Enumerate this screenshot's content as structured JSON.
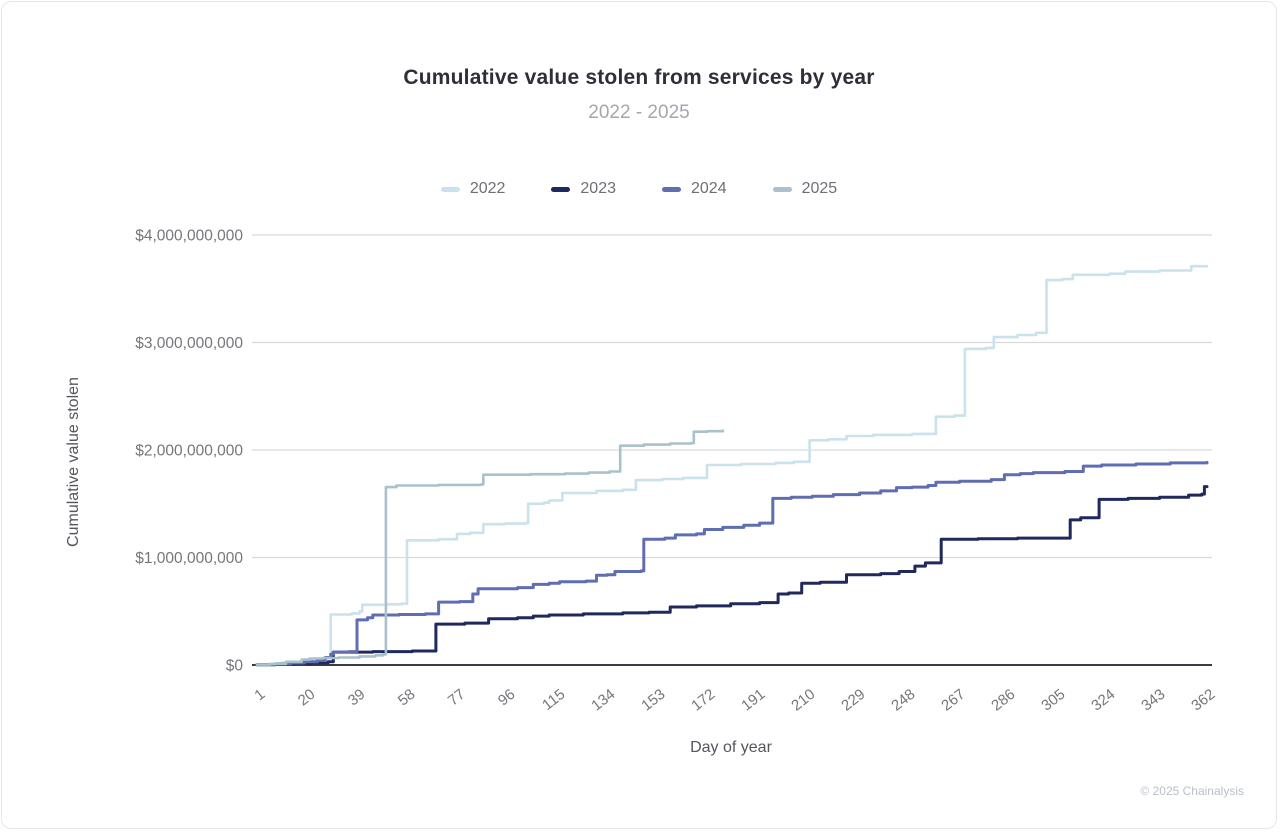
{
  "header": {
    "title": "Cumulative value stolen from services by year",
    "subtitle": "2022 - 2025"
  },
  "legend": {
    "items": [
      {
        "label": "2022",
        "color": "#c9e2ec"
      },
      {
        "label": "2023",
        "color": "#20295c"
      },
      {
        "label": "2024",
        "color": "#5f6db1"
      },
      {
        "label": "2025",
        "color": "#a8c1cb"
      }
    ]
  },
  "footer": {
    "copyright": "© 2025 Chainalysis"
  },
  "chart_data": {
    "type": "line",
    "title": "Cumulative value stolen from services by year",
    "subtitle": "2022 - 2025",
    "xlabel": "Day of year",
    "ylabel": "Cumulative value stolen",
    "units": "USD billions",
    "xlim": [
      1,
      362
    ],
    "ylim": [
      0,
      4000000000
    ],
    "grid": "horizontal",
    "step": true,
    "x_ticks": [
      1,
      20,
      39,
      58,
      77,
      96,
      115,
      134,
      153,
      172,
      191,
      210,
      229,
      248,
      267,
      286,
      305,
      324,
      343,
      362
    ],
    "y_ticks": [
      {
        "value": 0,
        "label": "$0"
      },
      {
        "value": 1,
        "label": "$1,000,000,000"
      },
      {
        "value": 2,
        "label": "$2,000,000,000"
      },
      {
        "value": 3,
        "label": "$3,000,000,000"
      },
      {
        "value": 4,
        "label": "$4,000,000,000"
      }
    ],
    "series": [
      {
        "name": "2022",
        "color": "#c9e2ec",
        "points": [
          [
            1,
            0.005
          ],
          [
            6,
            0.01
          ],
          [
            10,
            0.02
          ],
          [
            14,
            0.03
          ],
          [
            18,
            0.045
          ],
          [
            21,
            0.055
          ],
          [
            25,
            0.06
          ],
          [
            28,
            0.07
          ],
          [
            29,
            0.47
          ],
          [
            37,
            0.48
          ],
          [
            40,
            0.5
          ],
          [
            41,
            0.56
          ],
          [
            50,
            0.565
          ],
          [
            56,
            0.57
          ],
          [
            58,
            1.16
          ],
          [
            70,
            1.17
          ],
          [
            77,
            1.22
          ],
          [
            82,
            1.23
          ],
          [
            87,
            1.31
          ],
          [
            95,
            1.315
          ],
          [
            103,
            1.32
          ],
          [
            104,
            1.5
          ],
          [
            110,
            1.51
          ],
          [
            112,
            1.53
          ],
          [
            117,
            1.6
          ],
          [
            130,
            1.62
          ],
          [
            140,
            1.63
          ],
          [
            145,
            1.72
          ],
          [
            155,
            1.73
          ],
          [
            163,
            1.74
          ],
          [
            172,
            1.86
          ],
          [
            185,
            1.87
          ],
          [
            198,
            1.88
          ],
          [
            205,
            1.89
          ],
          [
            211,
            2.09
          ],
          [
            218,
            2.1
          ],
          [
            225,
            2.13
          ],
          [
            235,
            2.14
          ],
          [
            250,
            2.15
          ],
          [
            259,
            2.31
          ],
          [
            266,
            2.32
          ],
          [
            270,
            2.94
          ],
          [
            278,
            2.95
          ],
          [
            281,
            3.05
          ],
          [
            290,
            3.07
          ],
          [
            297,
            3.09
          ],
          [
            301,
            3.58
          ],
          [
            307,
            3.59
          ],
          [
            311,
            3.63
          ],
          [
            325,
            3.64
          ],
          [
            331,
            3.66
          ],
          [
            344,
            3.67
          ],
          [
            356,
            3.71
          ],
          [
            362,
            3.71
          ]
        ]
      },
      {
        "name": "2023",
        "color": "#20295c",
        "points": [
          [
            1,
            0.003
          ],
          [
            8,
            0.008
          ],
          [
            15,
            0.015
          ],
          [
            22,
            0.02
          ],
          [
            28,
            0.03
          ],
          [
            30,
            0.12
          ],
          [
            45,
            0.125
          ],
          [
            60,
            0.13
          ],
          [
            69,
            0.38
          ],
          [
            80,
            0.39
          ],
          [
            89,
            0.43
          ],
          [
            100,
            0.44
          ],
          [
            106,
            0.455
          ],
          [
            112,
            0.465
          ],
          [
            125,
            0.475
          ],
          [
            140,
            0.485
          ],
          [
            150,
            0.49
          ],
          [
            158,
            0.54
          ],
          [
            168,
            0.55
          ],
          [
            181,
            0.57
          ],
          [
            192,
            0.58
          ],
          [
            199,
            0.66
          ],
          [
            203,
            0.67
          ],
          [
            208,
            0.76
          ],
          [
            215,
            0.77
          ],
          [
            225,
            0.84
          ],
          [
            238,
            0.85
          ],
          [
            245,
            0.87
          ],
          [
            251,
            0.92
          ],
          [
            255,
            0.95
          ],
          [
            261,
            1.17
          ],
          [
            275,
            1.175
          ],
          [
            290,
            1.18
          ],
          [
            310,
            1.35
          ],
          [
            314,
            1.37
          ],
          [
            321,
            1.54
          ],
          [
            332,
            1.55
          ],
          [
            344,
            1.56
          ],
          [
            355,
            1.58
          ],
          [
            360,
            1.59
          ],
          [
            361,
            1.66
          ],
          [
            362,
            1.66
          ]
        ]
      },
      {
        "name": "2024",
        "color": "#5f6db1",
        "points": [
          [
            1,
            0.005
          ],
          [
            8,
            0.01
          ],
          [
            14,
            0.02
          ],
          [
            19,
            0.03
          ],
          [
            24,
            0.05
          ],
          [
            27,
            0.07
          ],
          [
            29,
            0.1
          ],
          [
            30,
            0.12
          ],
          [
            36,
            0.125
          ],
          [
            39,
            0.42
          ],
          [
            43,
            0.44
          ],
          [
            45,
            0.465
          ],
          [
            55,
            0.47
          ],
          [
            65,
            0.475
          ],
          [
            70,
            0.585
          ],
          [
            78,
            0.59
          ],
          [
            83,
            0.66
          ],
          [
            85,
            0.71
          ],
          [
            100,
            0.72
          ],
          [
            106,
            0.75
          ],
          [
            112,
            0.76
          ],
          [
            116,
            0.775
          ],
          [
            126,
            0.78
          ],
          [
            130,
            0.835
          ],
          [
            134,
            0.84
          ],
          [
            137,
            0.87
          ],
          [
            147,
            0.875
          ],
          [
            148,
            1.17
          ],
          [
            156,
            1.18
          ],
          [
            160,
            1.21
          ],
          [
            168,
            1.22
          ],
          [
            171,
            1.26
          ],
          [
            178,
            1.28
          ],
          [
            186,
            1.3
          ],
          [
            192,
            1.32
          ],
          [
            197,
            1.55
          ],
          [
            204,
            1.56
          ],
          [
            212,
            1.57
          ],
          [
            220,
            1.585
          ],
          [
            230,
            1.6
          ],
          [
            238,
            1.62
          ],
          [
            244,
            1.65
          ],
          [
            250,
            1.655
          ],
          [
            256,
            1.67
          ],
          [
            259,
            1.7
          ],
          [
            268,
            1.71
          ],
          [
            280,
            1.725
          ],
          [
            285,
            1.77
          ],
          [
            291,
            1.78
          ],
          [
            296,
            1.79
          ],
          [
            308,
            1.8
          ],
          [
            315,
            1.85
          ],
          [
            322,
            1.86
          ],
          [
            335,
            1.87
          ],
          [
            348,
            1.88
          ],
          [
            362,
            1.885
          ]
        ]
      },
      {
        "name": "2025",
        "color": "#a8c1cb",
        "points": [
          [
            1,
            0.004
          ],
          [
            6,
            0.01
          ],
          [
            12,
            0.03
          ],
          [
            18,
            0.05
          ],
          [
            21,
            0.06
          ],
          [
            26,
            0.065
          ],
          [
            32,
            0.07
          ],
          [
            40,
            0.08
          ],
          [
            46,
            0.09
          ],
          [
            49,
            0.1
          ],
          [
            50,
            1.655
          ],
          [
            54,
            1.67
          ],
          [
            70,
            1.675
          ],
          [
            86,
            1.68
          ],
          [
            87,
            1.77
          ],
          [
            105,
            1.775
          ],
          [
            118,
            1.78
          ],
          [
            127,
            1.79
          ],
          [
            135,
            1.8
          ],
          [
            139,
            2.04
          ],
          [
            148,
            2.05
          ],
          [
            158,
            2.06
          ],
          [
            166,
            2.065
          ],
          [
            167,
            2.17
          ],
          [
            172,
            2.175
          ],
          [
            178,
            2.18
          ]
        ]
      }
    ]
  }
}
